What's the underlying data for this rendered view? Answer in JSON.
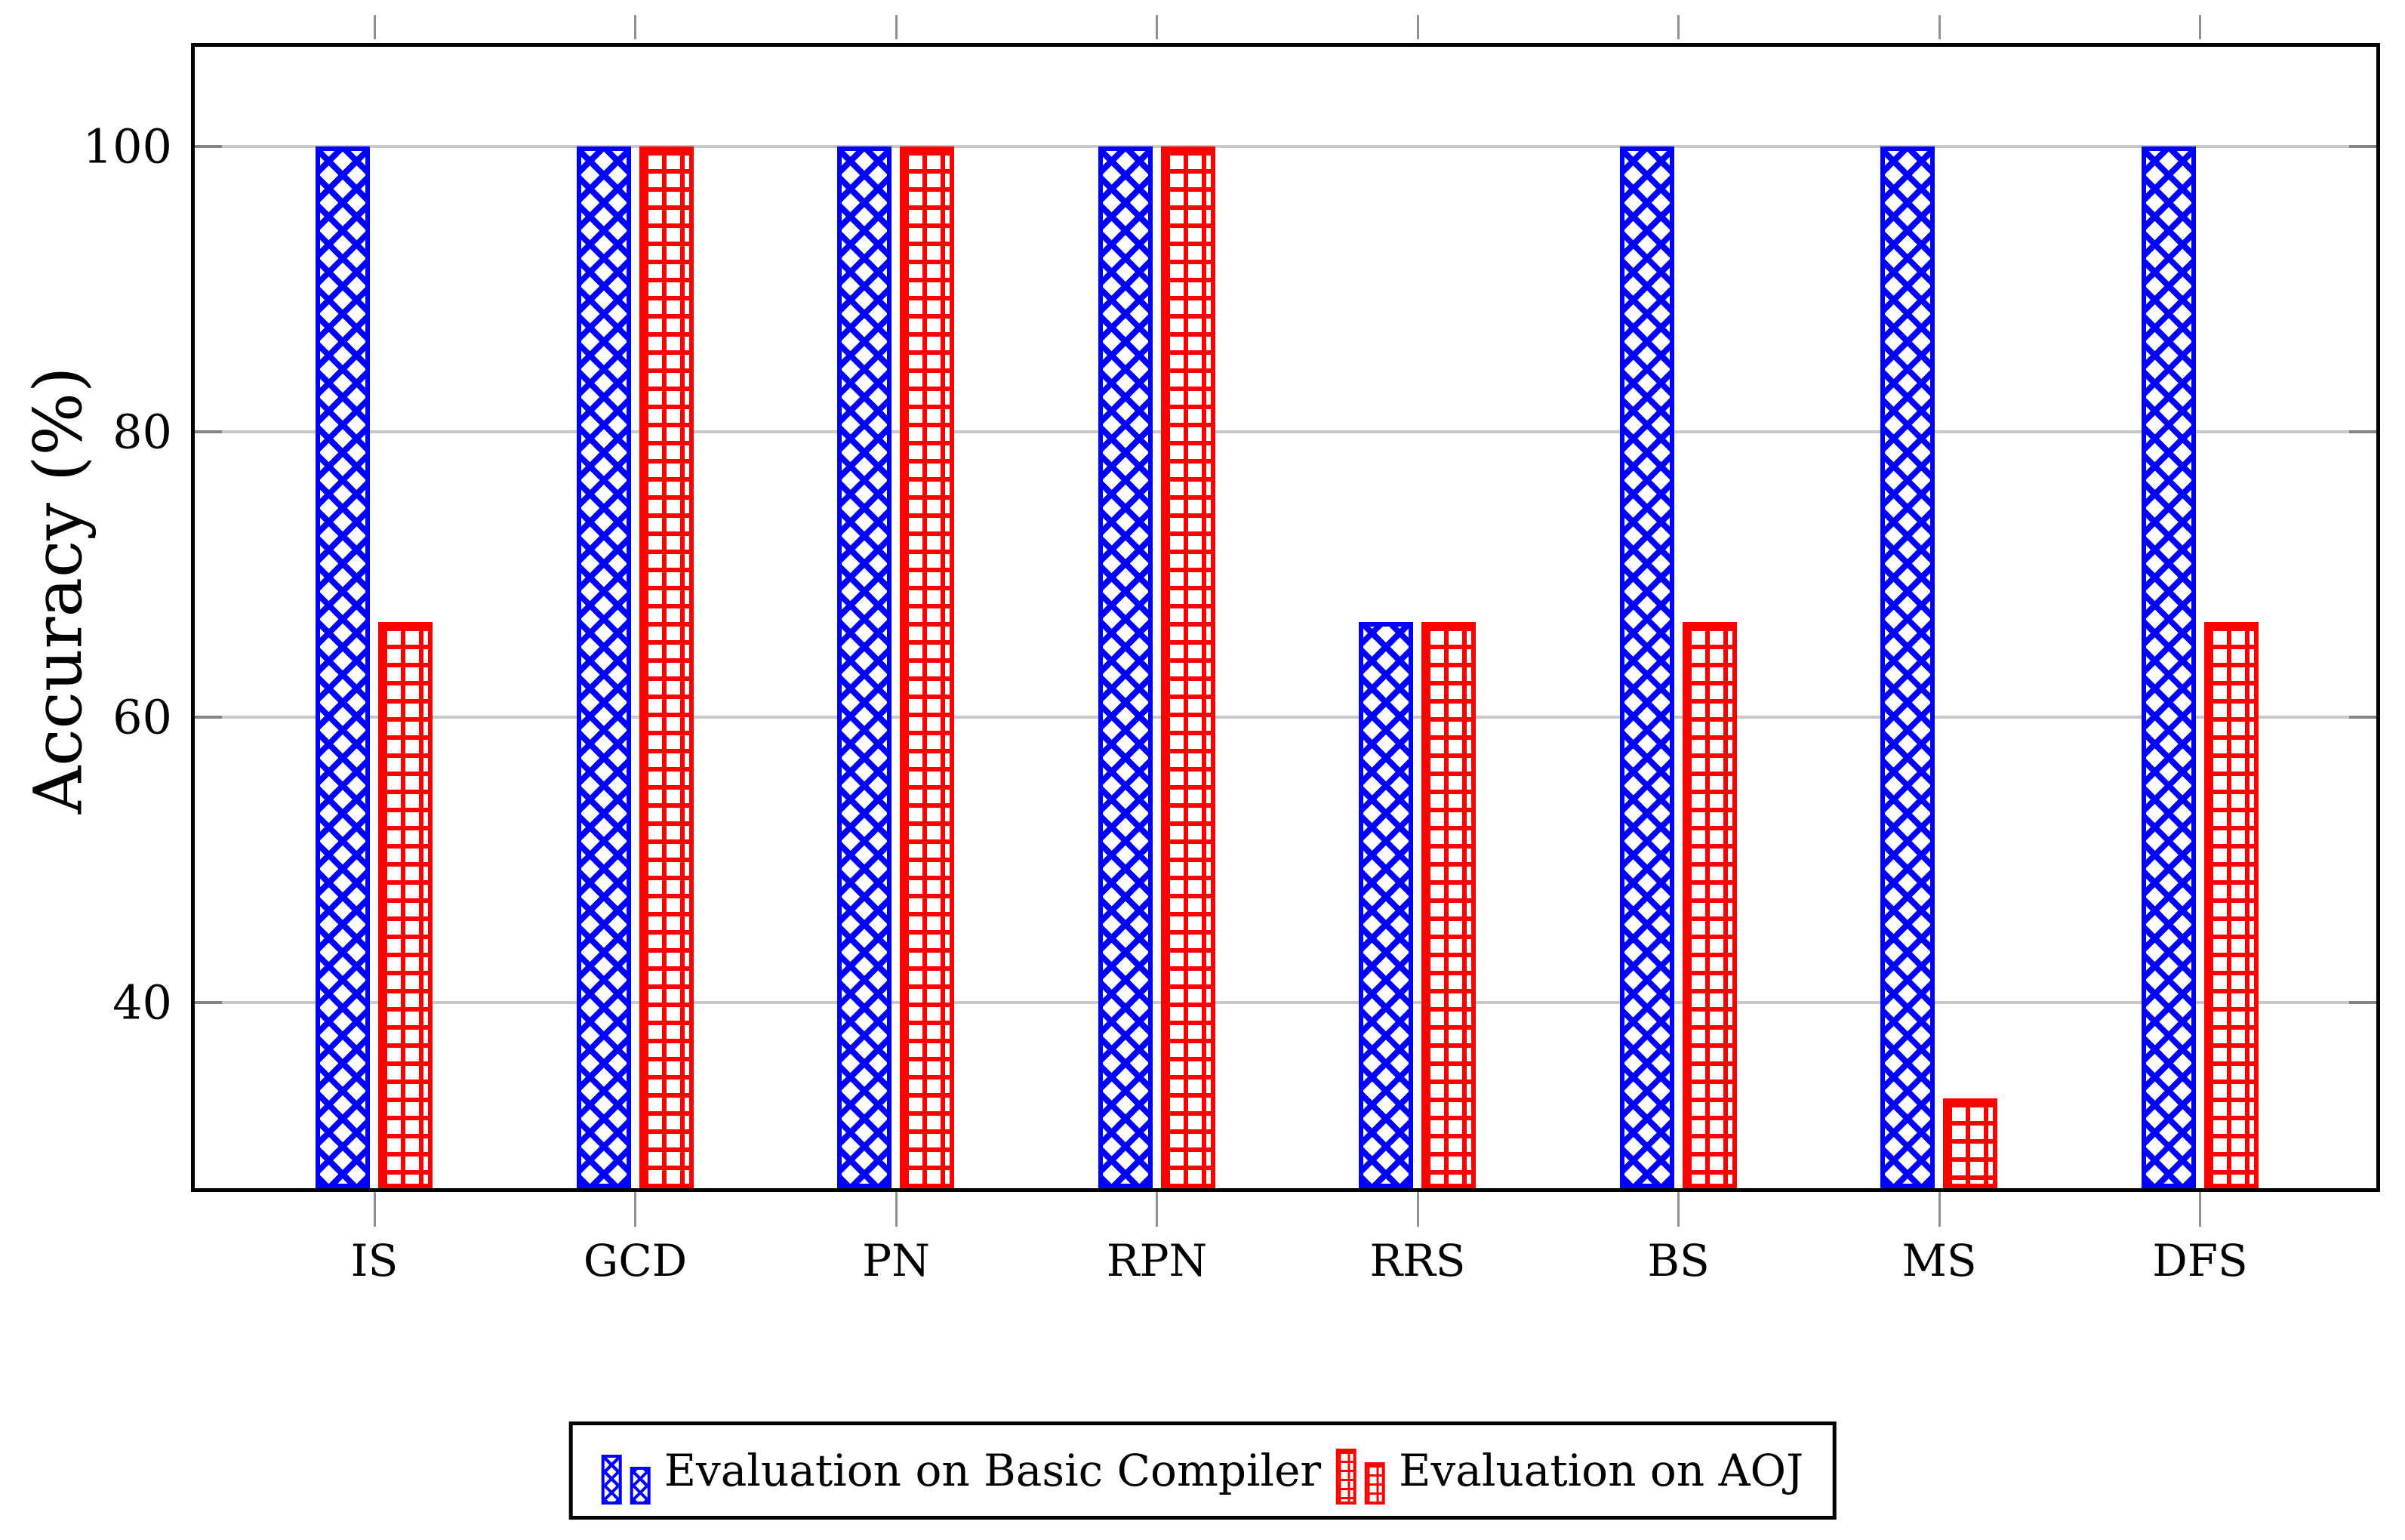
{
  "chart_data": {
    "type": "bar",
    "title": "",
    "ylabel": "Accuracy (%)",
    "xlabel": "",
    "categories": [
      "IS",
      "GCD",
      "PN",
      "RPN",
      "RRS",
      "BS",
      "MS",
      "DFS"
    ],
    "series": [
      {
        "name": "Evaluation on Basic Compiler",
        "color": "#0000FF",
        "pattern": "crosshatch",
        "values": [
          100,
          100,
          100,
          100,
          66.7,
          100,
          100,
          100
        ]
      },
      {
        "name": "Evaluation on AOJ",
        "color": "#FF0000",
        "pattern": "grid",
        "values": [
          66.7,
          100,
          100,
          100,
          66.7,
          66.7,
          33.3,
          66.7
        ]
      }
    ],
    "yticks": [
      40,
      60,
      80,
      100
    ],
    "ylim": [
      27,
      107
    ],
    "grid": "horizontal-gridlines-on",
    "grid_color": "#c8c8c8",
    "tick_color": "#848484",
    "legend_position": "below-plot-centered"
  }
}
